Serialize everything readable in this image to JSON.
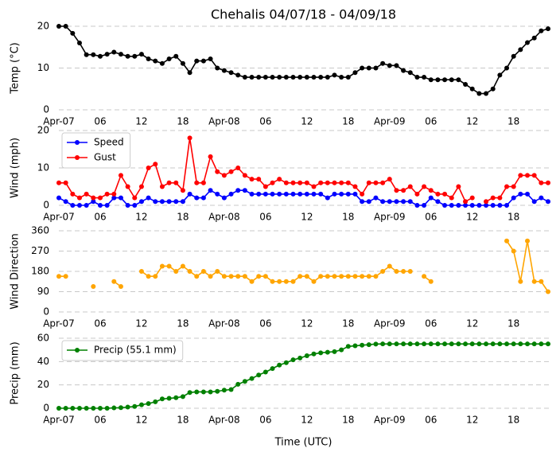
{
  "chart_data": [
    {
      "type": "line",
      "title": "Chehalis 04/07/18 - 04/09/18",
      "y_label": "Temp (°C)",
      "x": [
        0,
        1,
        2,
        3,
        4,
        5,
        6,
        7,
        8,
        9,
        10,
        11,
        12,
        13,
        14,
        15,
        16,
        17,
        18,
        19,
        20,
        21,
        22,
        23,
        24,
        25,
        26,
        27,
        28,
        29,
        30,
        31,
        32,
        33,
        34,
        35,
        36,
        37,
        38,
        39,
        40,
        41,
        42,
        43,
        44,
        45,
        46,
        47,
        48,
        49,
        50,
        51,
        52,
        53,
        54,
        55,
        56,
        57,
        58,
        59,
        60,
        61,
        62,
        63,
        64,
        65,
        66,
        67,
        68,
        69,
        70,
        71
      ],
      "values": [
        20,
        20,
        18.3,
        16,
        13.2,
        13.2,
        12.8,
        13.3,
        13.8,
        13.3,
        12.8,
        12.8,
        13.3,
        12.2,
        11.7,
        11.1,
        12.2,
        12.8,
        11.1,
        8.9,
        11.7,
        11.7,
        12.2,
        10,
        9.4,
        8.9,
        8.3,
        7.8,
        7.8,
        7.8,
        7.8,
        7.8,
        7.8,
        7.8,
        7.8,
        7.8,
        7.8,
        7.8,
        7.8,
        7.8,
        8.3,
        7.8,
        7.8,
        8.9,
        10,
        10,
        10,
        11.1,
        10.6,
        10.6,
        9.4,
        8.9,
        7.8,
        7.8,
        7.2,
        7.2,
        7.2,
        7.2,
        7.2,
        6.1,
        5,
        3.9,
        3.9,
        5,
        8.3,
        10,
        12.8,
        14.4,
        16.1,
        17.2,
        18.9,
        19.4
      ],
      "color": "#000000",
      "xlim": [
        0,
        71
      ],
      "ylim": [
        0,
        20
      ],
      "yticks": [
        0,
        10,
        20
      ],
      "grid": true,
      "xticks": [
        {
          "value": 0,
          "label": "Apr-07"
        },
        {
          "value": 6,
          "label": "06"
        },
        12,
        18,
        {
          "value": 24,
          "label": "Apr-08"
        },
        {
          "value": 30,
          "label": "06"
        },
        {
          "value": 36,
          "label": "12"
        },
        {
          "value": 42,
          "label": "18"
        },
        {
          "value": 48,
          "label": "Apr-09"
        },
        {
          "value": 54,
          "label": "06"
        },
        {
          "value": 60,
          "label": "12"
        },
        {
          "value": 66,
          "label": "18"
        }
      ]
    },
    {
      "type": "line",
      "y_label": "Wind (mph)",
      "legend": "upper left",
      "x": [
        0,
        1,
        2,
        3,
        4,
        5,
        6,
        7,
        8,
        9,
        10,
        11,
        12,
        13,
        14,
        15,
        16,
        17,
        18,
        19,
        20,
        21,
        22,
        23,
        24,
        25,
        26,
        27,
        28,
        29,
        30,
        31,
        32,
        33,
        34,
        35,
        36,
        37,
        38,
        39,
        40,
        41,
        42,
        43,
        44,
        45,
        46,
        47,
        48,
        49,
        50,
        51,
        52,
        53,
        54,
        55,
        56,
        57,
        58,
        59,
        60,
        61,
        62,
        63,
        64,
        65,
        66,
        67,
        68,
        69,
        70,
        71
      ],
      "series": [
        {
          "name": "Speed",
          "color": "#0000ff",
          "values": [
            2,
            1,
            0,
            0,
            0,
            1,
            0,
            0,
            2,
            2,
            0,
            0,
            1,
            2,
            1,
            1,
            1,
            1,
            1,
            3,
            2,
            2,
            4,
            3,
            2,
            3,
            4,
            4,
            3,
            3,
            3,
            3,
            3,
            3,
            3,
            3,
            3,
            3,
            3,
            2,
            3,
            3,
            3,
            3,
            1,
            1,
            2,
            1,
            1,
            1,
            1,
            1,
            0,
            0,
            2,
            1,
            0,
            0,
            0,
            0,
            0,
            0,
            0,
            0,
            0,
            0,
            2,
            3,
            3,
            1,
            2,
            1
          ]
        },
        {
          "name": "Gust",
          "color": "#ff0000",
          "values": [
            6,
            6,
            3,
            2,
            3,
            2,
            2,
            3,
            3,
            8,
            5,
            2,
            5,
            10,
            11,
            5,
            6,
            6,
            4,
            18,
            6,
            6,
            13,
            9,
            8,
            9,
            10,
            8,
            7,
            7,
            5,
            6,
            7,
            6,
            6,
            6,
            6,
            5,
            6,
            6,
            6,
            6,
            6,
            5,
            3,
            6,
            6,
            6,
            7,
            4,
            4,
            5,
            3,
            5,
            4,
            3,
            3,
            2,
            5,
            1,
            2,
            null,
            1,
            2,
            2,
            5,
            5,
            8,
            8,
            8,
            6,
            6
          ]
        }
      ],
      "xlim": [
        0,
        71
      ],
      "ylim": [
        0,
        20
      ],
      "yticks": [
        0,
        10,
        20
      ],
      "grid": true,
      "xticks": [
        {
          "value": 0,
          "label": "Apr-07"
        },
        {
          "value": 6,
          "label": "06"
        },
        12,
        18,
        {
          "value": 24,
          "label": "Apr-08"
        },
        {
          "value": 30,
          "label": "06"
        },
        {
          "value": 36,
          "label": "12"
        },
        {
          "value": 42,
          "label": "18"
        },
        {
          "value": 48,
          "label": "Apr-09"
        },
        {
          "value": 54,
          "label": "06"
        },
        {
          "value": 60,
          "label": "12"
        },
        {
          "value": 66,
          "label": "18"
        }
      ]
    },
    {
      "type": "line",
      "y_label": "Wind Direction",
      "x": [
        0,
        1,
        2,
        3,
        4,
        5,
        6,
        7,
        8,
        9,
        10,
        11,
        12,
        13,
        14,
        15,
        16,
        17,
        18,
        19,
        20,
        21,
        22,
        23,
        24,
        25,
        26,
        27,
        28,
        29,
        30,
        31,
        32,
        33,
        34,
        35,
        36,
        37,
        38,
        39,
        40,
        41,
        42,
        43,
        44,
        45,
        46,
        47,
        48,
        49,
        50,
        51,
        52,
        53,
        54,
        55,
        56,
        57,
        58,
        59,
        60,
        61,
        62,
        63,
        64,
        65,
        66,
        67,
        68,
        69,
        70,
        71
      ],
      "values": [
        158,
        158,
        null,
        null,
        null,
        113,
        null,
        null,
        135,
        113,
        null,
        null,
        180,
        158,
        158,
        203,
        203,
        180,
        203,
        180,
        158,
        180,
        158,
        180,
        158,
        158,
        158,
        158,
        135,
        158,
        158,
        135,
        135,
        135,
        135,
        158,
        158,
        135,
        158,
        158,
        158,
        158,
        158,
        158,
        158,
        158,
        158,
        180,
        203,
        180,
        180,
        180,
        null,
        158,
        135,
        null,
        null,
        null,
        null,
        null,
        null,
        null,
        null,
        null,
        null,
        315,
        270,
        135,
        315,
        135,
        135,
        90
      ],
      "color": "#ffa500",
      "xlim": [
        0,
        71
      ],
      "ylim": [
        0,
        360
      ],
      "yticks": [
        0,
        90,
        180,
        270,
        360
      ],
      "grid": true,
      "xticks": [
        {
          "value": 0,
          "label": "Apr-07"
        },
        {
          "value": 6,
          "label": "06"
        },
        12,
        18,
        {
          "value": 24,
          "label": "Apr-08"
        },
        {
          "value": 30,
          "label": "06"
        },
        {
          "value": 36,
          "label": "12"
        },
        {
          "value": 42,
          "label": "18"
        },
        {
          "value": 48,
          "label": "Apr-09"
        },
        {
          "value": 54,
          "label": "06"
        },
        {
          "value": 60,
          "label": "12"
        },
        {
          "value": 66,
          "label": "18"
        }
      ]
    },
    {
      "type": "line",
      "y_label": "Precip (mm)",
      "x_label": "Time (UTC)",
      "legend": "upper left",
      "x": [
        0,
        1,
        2,
        3,
        4,
        5,
        6,
        7,
        8,
        9,
        10,
        11,
        12,
        13,
        14,
        15,
        16,
        17,
        18,
        19,
        20,
        21,
        22,
        23,
        24,
        25,
        26,
        27,
        28,
        29,
        30,
        31,
        32,
        33,
        34,
        35,
        36,
        37,
        38,
        39,
        40,
        41,
        42,
        43,
        44,
        45,
        46,
        47,
        48,
        49,
        50,
        51,
        52,
        53,
        54,
        55,
        56,
        57,
        58,
        59,
        60,
        61,
        62,
        63,
        64,
        65,
        66,
        67,
        68,
        69,
        70,
        71
      ],
      "series": [
        {
          "name": "Precip (55.1 mm)",
          "color": "#008000",
          "values": [
            0,
            0,
            0,
            0,
            0,
            0,
            0,
            0,
            0.3,
            0.5,
            1,
            1.5,
            3,
            4,
            5.5,
            8,
            8.5,
            9,
            10,
            13.5,
            14,
            14,
            14,
            14.5,
            15.5,
            16,
            20.5,
            23,
            25.5,
            28.5,
            31,
            34,
            37,
            39,
            41.5,
            43,
            45,
            46.5,
            47.5,
            48,
            48.5,
            50,
            53,
            53.5,
            54,
            54.5,
            55,
            55.1,
            55.1,
            55.1,
            55.1,
            55.1,
            55.1,
            55.1,
            55.1,
            55.1,
            55.1,
            55.1,
            55.1,
            55.1,
            55.1,
            55.1,
            55.1,
            55.1,
            55.1,
            55.1,
            55.1,
            55.1,
            55.1,
            55.1,
            55.1,
            55.1
          ]
        }
      ],
      "xlim": [
        0,
        71
      ],
      "ylim": [
        0,
        60
      ],
      "yticks": [
        0,
        20,
        40,
        60
      ],
      "grid": true,
      "xticks": [
        {
          "value": 0,
          "label": "Apr-07"
        },
        {
          "value": 6,
          "label": "06"
        },
        12,
        18,
        {
          "value": 24,
          "label": "Apr-08"
        },
        {
          "value": 30,
          "label": "06"
        },
        {
          "value": 36,
          "label": "12"
        },
        {
          "value": 42,
          "label": "18"
        },
        {
          "value": 48,
          "label": "Apr-09"
        },
        {
          "value": 54,
          "label": "06"
        },
        {
          "value": 60,
          "label": "12"
        },
        {
          "value": 66,
          "label": "18"
        }
      ]
    }
  ]
}
